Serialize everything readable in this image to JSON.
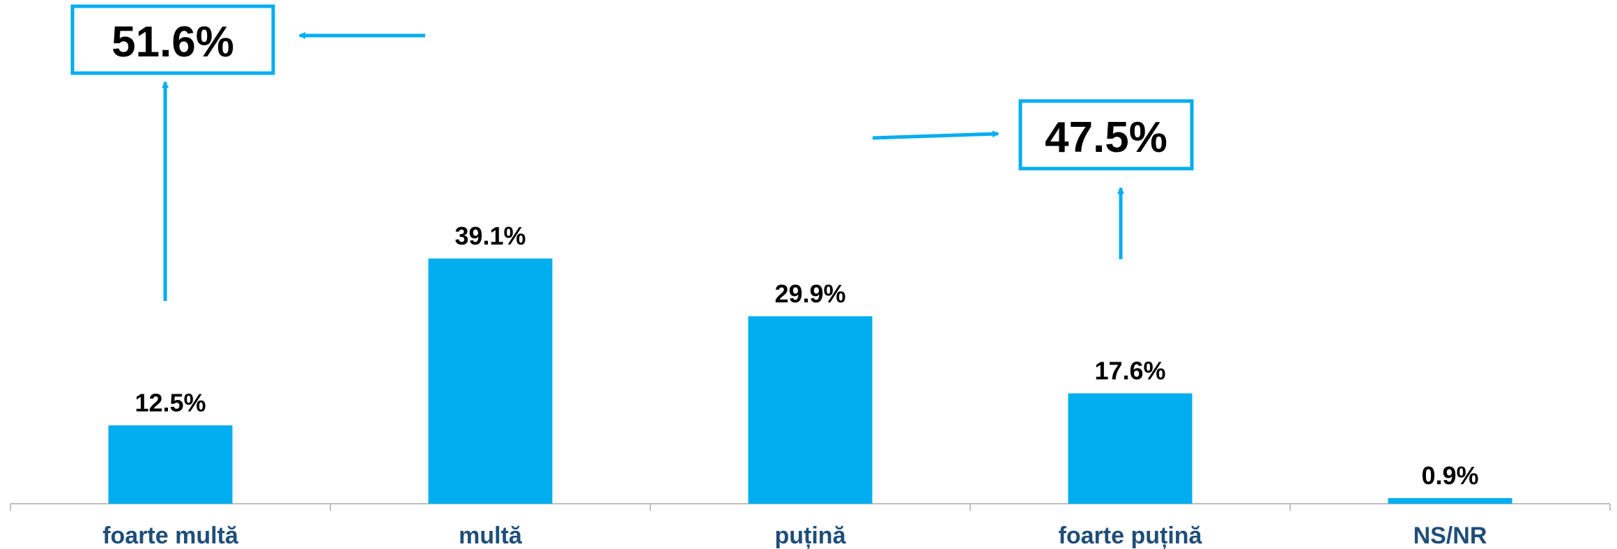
{
  "chart_data": {
    "type": "bar",
    "categories": [
      "foarte multă",
      "multă",
      "puțină",
      "foarte puțină",
      "NS/NR"
    ],
    "values": [
      12.5,
      39.1,
      29.9,
      17.6,
      0.9
    ],
    "value_labels": [
      "12.5%",
      "39.1%",
      "29.9%",
      "17.6%",
      "0.9%"
    ],
    "ylim": [
      0,
      45
    ],
    "grid": false,
    "legend": "none",
    "callouts": [
      {
        "label": "51.6%",
        "sum_of": [
          "foarte multă",
          "multă"
        ]
      },
      {
        "label": "47.5%",
        "sum_of": [
          "puțină",
          "foarte puțină"
        ]
      }
    ]
  },
  "colors": {
    "bar": "#00AEEF",
    "axis": "#BFBFBF",
    "category_text": "#1F4E79",
    "callout_border": "#00AEEF",
    "arrow": "#00AEEF"
  }
}
